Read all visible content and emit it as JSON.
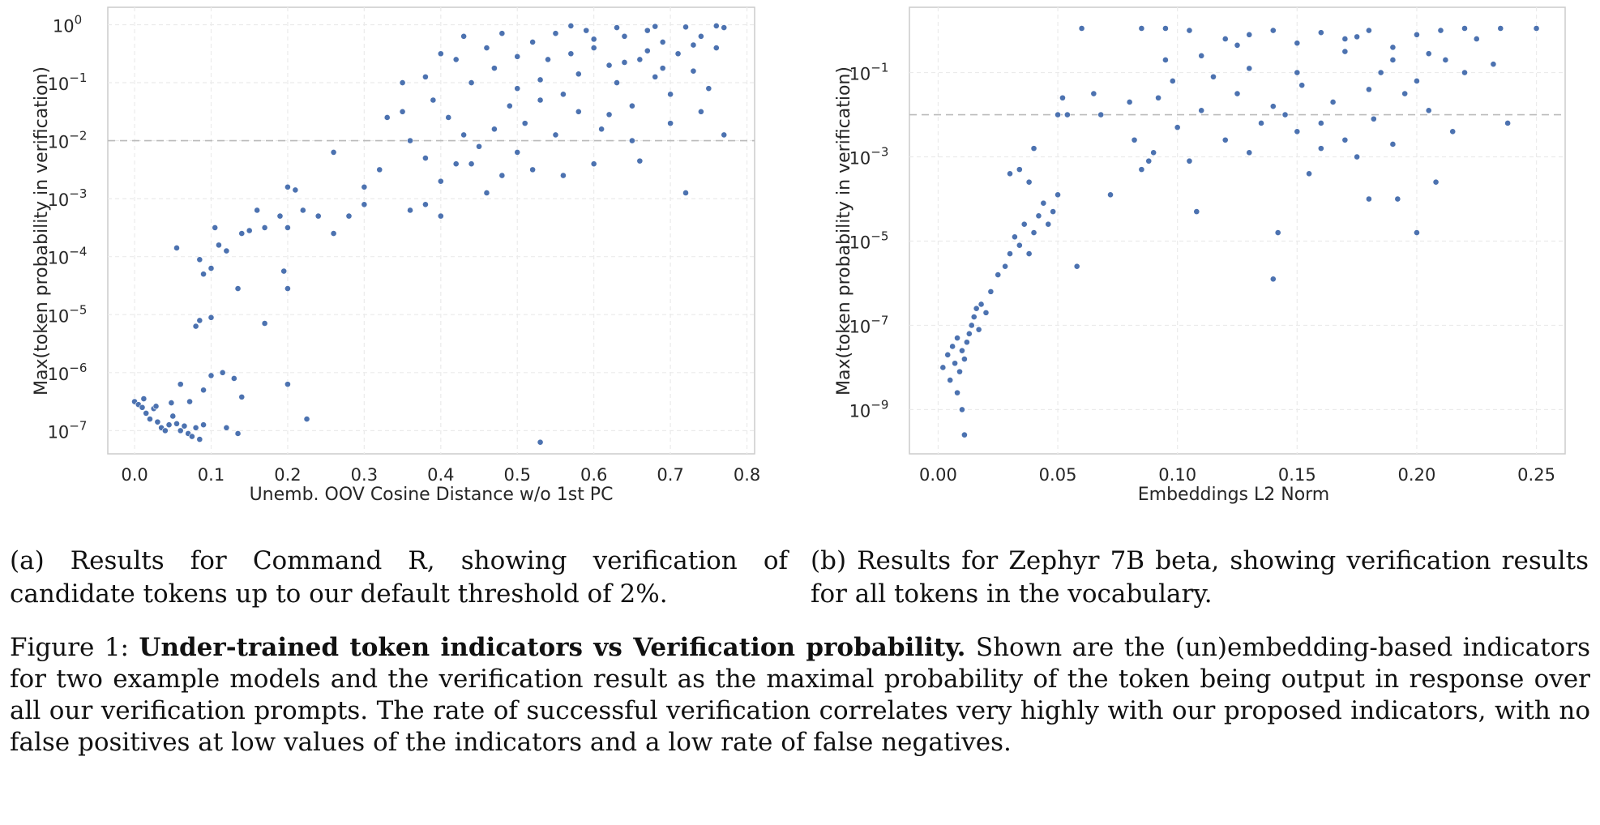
{
  "chart_data": [
    {
      "type": "scatter",
      "id": "a",
      "xlabel": "Unemb. OOV Cosine Distance w/o 1st PC",
      "ylabel": "Max(token probability in verification)",
      "xlim": [
        -0.035,
        0.81
      ],
      "ylim_log10": [
        -7.4,
        0.3
      ],
      "xticks": [
        "0.0",
        "0.1",
        "0.2",
        "0.3",
        "0.4",
        "0.5",
        "0.6",
        "0.7",
        "0.8"
      ],
      "xtick_values": [
        0,
        0.1,
        0.2,
        0.3,
        0.4,
        0.5,
        0.6,
        0.7,
        0.8
      ],
      "yticks": [
        {
          "base": "10",
          "exp": "0",
          "log": 0
        },
        {
          "base": "10",
          "exp": "−1",
          "log": -1
        },
        {
          "base": "10",
          "exp": "−2",
          "log": -2
        },
        {
          "base": "10",
          "exp": "−3",
          "log": -3
        },
        {
          "base": "10",
          "exp": "−4",
          "log": -4
        },
        {
          "base": "10",
          "exp": "−5",
          "log": -5
        },
        {
          "base": "10",
          "exp": "−6",
          "log": -6
        },
        {
          "base": "10",
          "exp": "−7",
          "log": -7
        }
      ],
      "threshold_log10": -2,
      "points": [
        [
          0.0,
          -6.5
        ],
        [
          0.005,
          -6.55
        ],
        [
          0.01,
          -6.6
        ],
        [
          0.015,
          -6.7
        ],
        [
          0.02,
          -6.8
        ],
        [
          0.025,
          -6.62
        ],
        [
          0.03,
          -6.85
        ],
        [
          0.035,
          -6.95
        ],
        [
          0.04,
          -7.0
        ],
        [
          0.045,
          -6.9
        ],
        [
          0.05,
          -6.75
        ],
        [
          0.055,
          -6.88
        ],
        [
          0.06,
          -7.0
        ],
        [
          0.065,
          -6.92
        ],
        [
          0.07,
          -7.05
        ],
        [
          0.075,
          -7.1
        ],
        [
          0.08,
          -6.95
        ],
        [
          0.085,
          -7.15
        ],
        [
          0.09,
          -6.9
        ],
        [
          0.012,
          -6.45
        ],
        [
          0.028,
          -6.58
        ],
        [
          0.048,
          -6.52
        ],
        [
          0.06,
          -6.2
        ],
        [
          0.072,
          -6.5
        ],
        [
          0.09,
          -6.3
        ],
        [
          0.1,
          -6.05
        ],
        [
          0.115,
          -6.0
        ],
        [
          0.13,
          -6.1
        ],
        [
          0.14,
          -6.42
        ],
        [
          0.12,
          -6.95
        ],
        [
          0.135,
          -7.05
        ],
        [
          0.2,
          -6.2
        ],
        [
          0.225,
          -6.8
        ],
        [
          0.53,
          -7.2
        ],
        [
          0.08,
          -5.2
        ],
        [
          0.085,
          -5.1
        ],
        [
          0.1,
          -5.05
        ],
        [
          0.17,
          -5.15
        ],
        [
          0.055,
          -3.85
        ],
        [
          0.085,
          -4.05
        ],
        [
          0.09,
          -4.3
        ],
        [
          0.1,
          -4.2
        ],
        [
          0.11,
          -3.8
        ],
        [
          0.12,
          -3.9
        ],
        [
          0.135,
          -4.55
        ],
        [
          0.2,
          -4.55
        ],
        [
          0.195,
          -4.25
        ],
        [
          0.105,
          -3.5
        ],
        [
          0.14,
          -3.6
        ],
        [
          0.15,
          -3.55
        ],
        [
          0.16,
          -3.2
        ],
        [
          0.17,
          -3.5
        ],
        [
          0.19,
          -3.3
        ],
        [
          0.2,
          -3.5
        ],
        [
          0.22,
          -3.2
        ],
        [
          0.24,
          -3.3
        ],
        [
          0.26,
          -3.6
        ],
        [
          0.28,
          -3.3
        ],
        [
          0.3,
          -3.1
        ],
        [
          0.21,
          -2.85
        ],
        [
          0.2,
          -2.8
        ],
        [
          0.26,
          -2.2
        ],
        [
          0.3,
          -2.8
        ],
        [
          0.32,
          -2.5
        ],
        [
          0.33,
          -1.6
        ],
        [
          0.35,
          -1.5
        ],
        [
          0.36,
          -2.0
        ],
        [
          0.38,
          -2.3
        ],
        [
          0.4,
          -2.7
        ],
        [
          0.42,
          -2.4
        ],
        [
          0.36,
          -3.2
        ],
        [
          0.38,
          -3.1
        ],
        [
          0.4,
          -3.3
        ],
        [
          0.35,
          -1.0
        ],
        [
          0.38,
          -0.9
        ],
        [
          0.4,
          -0.5
        ],
        [
          0.42,
          -0.6
        ],
        [
          0.39,
          -1.3
        ],
        [
          0.41,
          -1.6
        ],
        [
          0.43,
          -1.9
        ],
        [
          0.44,
          -2.4
        ],
        [
          0.45,
          -2.1
        ],
        [
          0.46,
          -2.9
        ],
        [
          0.47,
          -1.8
        ],
        [
          0.48,
          -2.6
        ],
        [
          0.49,
          -1.4
        ],
        [
          0.5,
          -2.2
        ],
        [
          0.44,
          -1.0
        ],
        [
          0.46,
          -0.4
        ],
        [
          0.48,
          -0.15
        ],
        [
          0.43,
          -0.2
        ],
        [
          0.52,
          -0.3
        ],
        [
          0.54,
          -0.6
        ],
        [
          0.5,
          -1.1
        ],
        [
          0.51,
          -1.7
        ],
        [
          0.52,
          -2.5
        ],
        [
          0.53,
          -1.3
        ],
        [
          0.55,
          -1.9
        ],
        [
          0.56,
          -1.2
        ],
        [
          0.57,
          -0.5
        ],
        [
          0.58,
          -1.5
        ],
        [
          0.59,
          -0.1
        ],
        [
          0.6,
          -0.4
        ],
        [
          0.61,
          -1.8
        ],
        [
          0.62,
          -0.7
        ],
        [
          0.63,
          -1.0
        ],
        [
          0.64,
          -0.2
        ],
        [
          0.65,
          -1.4
        ],
        [
          0.66,
          -0.6
        ],
        [
          0.67,
          -0.1
        ],
        [
          0.68,
          -0.9
        ],
        [
          0.69,
          -0.3
        ],
        [
          0.7,
          -1.2
        ],
        [
          0.71,
          -0.5
        ],
        [
          0.72,
          -2.9
        ],
        [
          0.73,
          -0.8
        ],
        [
          0.74,
          -0.2
        ],
        [
          0.75,
          -1.1
        ],
        [
          0.76,
          -0.4
        ],
        [
          0.77,
          -0.05
        ],
        [
          0.65,
          -2.0
        ],
        [
          0.6,
          -2.4
        ],
        [
          0.56,
          -2.6
        ],
        [
          0.53,
          -0.95
        ],
        [
          0.5,
          -0.55
        ],
        [
          0.47,
          -0.75
        ],
        [
          0.55,
          -0.15
        ],
        [
          0.58,
          -0.85
        ],
        [
          0.62,
          -1.55
        ],
        [
          0.66,
          -2.35
        ],
        [
          0.7,
          -1.7
        ],
        [
          0.74,
          -1.5
        ],
        [
          0.77,
          -1.9
        ],
        [
          0.57,
          -0.02
        ],
        [
          0.63,
          -0.05
        ],
        [
          0.68,
          -0.03
        ],
        [
          0.72,
          -0.04
        ],
        [
          0.76,
          -0.02
        ],
        [
          0.6,
          -0.25
        ],
        [
          0.67,
          -0.45
        ],
        [
          0.73,
          -0.35
        ],
        [
          0.64,
          -0.65
        ],
        [
          0.69,
          -0.75
        ]
      ]
    },
    {
      "type": "scatter",
      "id": "b",
      "xlabel": "Embeddings L2 Norm",
      "ylabel": "Max(token probability in verification)",
      "xlim": [
        -0.012,
        0.262
      ],
      "ylim_log10": [
        -10.05,
        0.55
      ],
      "xticks": [
        "0.00",
        "0.05",
        "0.10",
        "0.15",
        "0.20",
        "0.25"
      ],
      "xtick_values": [
        0,
        0.05,
        0.1,
        0.15,
        0.2,
        0.25
      ],
      "yticks": [
        {
          "base": "10",
          "exp": "−1",
          "log": -1
        },
        {
          "base": "10",
          "exp": "−3",
          "log": -3
        },
        {
          "base": "10",
          "exp": "−5",
          "log": -5
        },
        {
          "base": "10",
          "exp": "−7",
          "log": -7
        },
        {
          "base": "10",
          "exp": "−9",
          "log": -9
        }
      ],
      "threshold_log10": -2,
      "points": [
        [
          0.002,
          -8.0
        ],
        [
          0.004,
          -7.7
        ],
        [
          0.005,
          -8.3
        ],
        [
          0.006,
          -7.5
        ],
        [
          0.007,
          -7.9
        ],
        [
          0.008,
          -7.3
        ],
        [
          0.009,
          -8.1
        ],
        [
          0.01,
          -7.6
        ],
        [
          0.011,
          -7.8
        ],
        [
          0.012,
          -7.4
        ],
        [
          0.013,
          -7.2
        ],
        [
          0.014,
          -7.0
        ],
        [
          0.015,
          -6.8
        ],
        [
          0.016,
          -6.6
        ],
        [
          0.017,
          -7.1
        ],
        [
          0.018,
          -6.5
        ],
        [
          0.02,
          -6.7
        ],
        [
          0.008,
          -8.6
        ],
        [
          0.01,
          -9.0
        ],
        [
          0.011,
          -9.6
        ],
        [
          0.022,
          -6.2
        ],
        [
          0.025,
          -5.8
        ],
        [
          0.028,
          -5.6
        ],
        [
          0.03,
          -5.3
        ],
        [
          0.032,
          -4.9
        ],
        [
          0.034,
          -5.1
        ],
        [
          0.036,
          -4.6
        ],
        [
          0.038,
          -5.3
        ],
        [
          0.04,
          -4.8
        ],
        [
          0.042,
          -4.4
        ],
        [
          0.044,
          -4.1
        ],
        [
          0.046,
          -4.6
        ],
        [
          0.048,
          -4.3
        ],
        [
          0.05,
          -3.9
        ],
        [
          0.03,
          -3.4
        ],
        [
          0.034,
          -3.3
        ],
        [
          0.038,
          -3.6
        ],
        [
          0.04,
          -2.8
        ],
        [
          0.058,
          -5.6
        ],
        [
          0.05,
          -2.0
        ],
        [
          0.052,
          -1.6
        ],
        [
          0.054,
          -2.0
        ],
        [
          0.06,
          0.05
        ],
        [
          0.065,
          -1.5
        ],
        [
          0.068,
          -2.0
        ],
        [
          0.072,
          -3.9
        ],
        [
          0.08,
          -1.7
        ],
        [
          0.082,
          -2.6
        ],
        [
          0.085,
          -3.3
        ],
        [
          0.088,
          -3.1
        ],
        [
          0.09,
          -2.9
        ],
        [
          0.092,
          -1.6
        ],
        [
          0.095,
          -0.7
        ],
        [
          0.098,
          -1.2
        ],
        [
          0.1,
          -2.3
        ],
        [
          0.105,
          -3.1
        ],
        [
          0.108,
          -4.3
        ],
        [
          0.11,
          -1.9
        ],
        [
          0.115,
          -1.1
        ],
        [
          0.12,
          -2.6
        ],
        [
          0.125,
          -1.5
        ],
        [
          0.13,
          -2.9
        ],
        [
          0.135,
          -2.2
        ],
        [
          0.14,
          -5.9
        ],
        [
          0.142,
          -4.8
        ],
        [
          0.145,
          -2.0
        ],
        [
          0.15,
          -2.4
        ],
        [
          0.152,
          -1.3
        ],
        [
          0.155,
          -3.4
        ],
        [
          0.16,
          -2.8
        ],
        [
          0.165,
          -1.7
        ],
        [
          0.17,
          -2.6
        ],
        [
          0.175,
          -3.0
        ],
        [
          0.18,
          -4.0
        ],
        [
          0.182,
          -2.1
        ],
        [
          0.185,
          -1.0
        ],
        [
          0.19,
          -2.7
        ],
        [
          0.192,
          -4.0
        ],
        [
          0.195,
          -1.5
        ],
        [
          0.2,
          -4.8
        ],
        [
          0.205,
          -1.9
        ],
        [
          0.208,
          -3.6
        ],
        [
          0.212,
          -0.7
        ],
        [
          0.215,
          -2.4
        ],
        [
          0.22,
          -1.0
        ],
        [
          0.225,
          -0.2
        ],
        [
          0.232,
          -0.8
        ],
        [
          0.238,
          -2.2
        ],
        [
          0.085,
          0.05
        ],
        [
          0.095,
          0.05
        ],
        [
          0.105,
          0.0
        ],
        [
          0.12,
          -0.2
        ],
        [
          0.13,
          -0.1
        ],
        [
          0.14,
          0.0
        ],
        [
          0.15,
          -0.3
        ],
        [
          0.16,
          -0.05
        ],
        [
          0.17,
          -0.2
        ],
        [
          0.18,
          0.0
        ],
        [
          0.19,
          -0.4
        ],
        [
          0.2,
          -0.1
        ],
        [
          0.21,
          0.0
        ],
        [
          0.22,
          0.05
        ],
        [
          0.235,
          0.05
        ],
        [
          0.25,
          0.05
        ],
        [
          0.11,
          -0.6
        ],
        [
          0.13,
          -0.9
        ],
        [
          0.15,
          -1.0
        ],
        [
          0.17,
          -0.5
        ],
        [
          0.19,
          -0.7
        ],
        [
          0.14,
          -1.8
        ],
        [
          0.16,
          -2.2
        ],
        [
          0.18,
          -1.4
        ],
        [
          0.2,
          -1.2
        ],
        [
          0.125,
          -0.35
        ],
        [
          0.175,
          -0.15
        ],
        [
          0.205,
          -0.55
        ]
      ]
    }
  ],
  "captions": {
    "a": "(a) Results for Command R, showing verification of candidate tokens up to our default threshold of 2%.",
    "b": "(b) Results for Zephyr 7B beta, showing verification results for all tokens in the vocabulary.",
    "figure_label": "Figure 1:",
    "figure_title": "Under-trained token indicators vs Verification probability.",
    "figure_body": "Shown are the (un)embedding-based indicators for two example models and the verification result as the maximal probability of the token being output in response over all our verification prompts. The rate of successful verification correlates very highly with our proposed indicators, with no false positives at low values of the indicators and a low rate of false negatives."
  },
  "colors": {
    "point": "#4c72b0",
    "threshold": "#bbbbbb",
    "grid": "#ebebeb",
    "spine": "#cccccc"
  }
}
